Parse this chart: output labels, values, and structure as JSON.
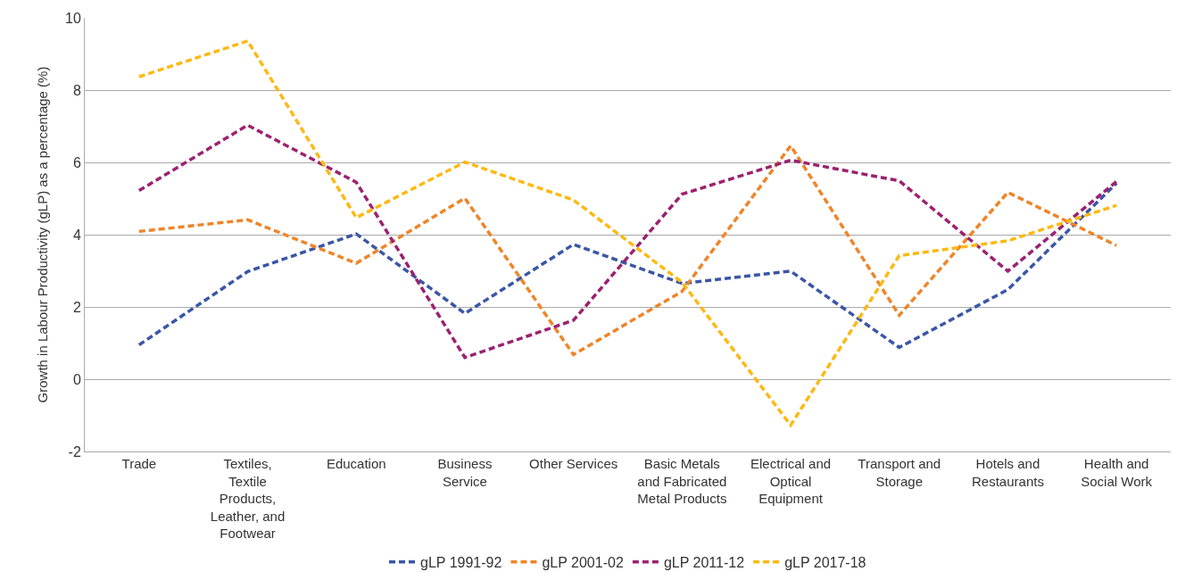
{
  "chart_data": {
    "type": "line",
    "ylabel": "Growth in Labour Productivity (gLP) as a percentage (%)",
    "categories": [
      "Trade",
      "Textiles, Textile Products, Leather, and Footwear",
      "Education",
      "Business Service",
      "Other Services",
      "Basic Metals and Fabricated Metal Products",
      "Electrical and Optical Equipment",
      "Transport and Storage",
      "Hotels and Restaurants",
      "Health and Social Work"
    ],
    "series": [
      {
        "name": "gLP 1991-92",
        "color": "#3a56a5",
        "values": [
          0.95,
          2.98,
          4.02,
          1.82,
          3.73,
          2.65,
          2.99,
          0.88,
          2.48,
          5.42
        ]
      },
      {
        "name": "gLP 2001-02",
        "color": "#ee8529",
        "values": [
          4.09,
          4.41,
          3.21,
          5.01,
          0.68,
          2.43,
          6.46,
          1.77,
          5.17,
          3.7
        ]
      },
      {
        "name": "gLP 2011-12",
        "color": "#9b2270",
        "values": [
          5.22,
          7.03,
          5.45,
          0.6,
          1.63,
          5.12,
          6.06,
          5.49,
          2.99,
          5.47
        ]
      },
      {
        "name": "gLP 2017-18",
        "color": "#fdb913",
        "values": [
          8.37,
          9.36,
          4.47,
          6.01,
          4.96,
          2.68,
          -1.27,
          3.42,
          3.83,
          4.81
        ]
      }
    ],
    "ylim": [
      -2,
      10
    ],
    "yticks": [
      -2,
      0,
      2,
      4,
      6,
      8,
      10
    ],
    "grid": "y",
    "legend": "bottom",
    "line_style": "dashed",
    "marker": "none"
  }
}
